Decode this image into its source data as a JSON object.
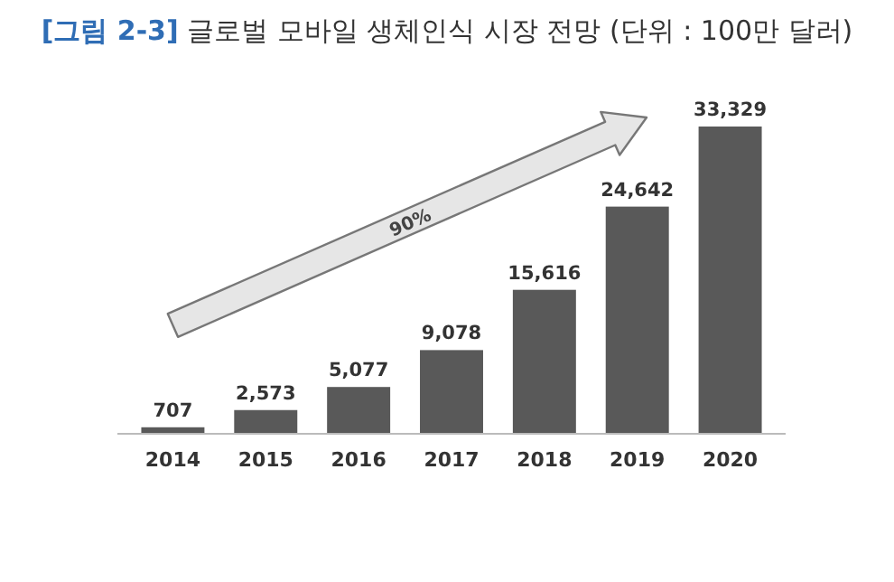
{
  "chart_data": {
    "type": "bar",
    "title": "**[그림 2-3]** 글로벌 모바일 생체인식 시장 전망 (단위 : 100만 달러)",
    "categories": [
      "2014",
      "2015",
      "2016",
      "2017",
      "2018",
      "2019",
      "2020"
    ],
    "values": [
      707,
      2573,
      5077,
      9078,
      15616,
      24642,
      33329
    ],
    "value_labels": [
      "707",
      "2,573",
      "5,077",
      "9,078",
      "15,616",
      "24,642",
      "33,329"
    ],
    "color": "#595959",
    "annotations": [
      "90%"
    ]
  }
}
